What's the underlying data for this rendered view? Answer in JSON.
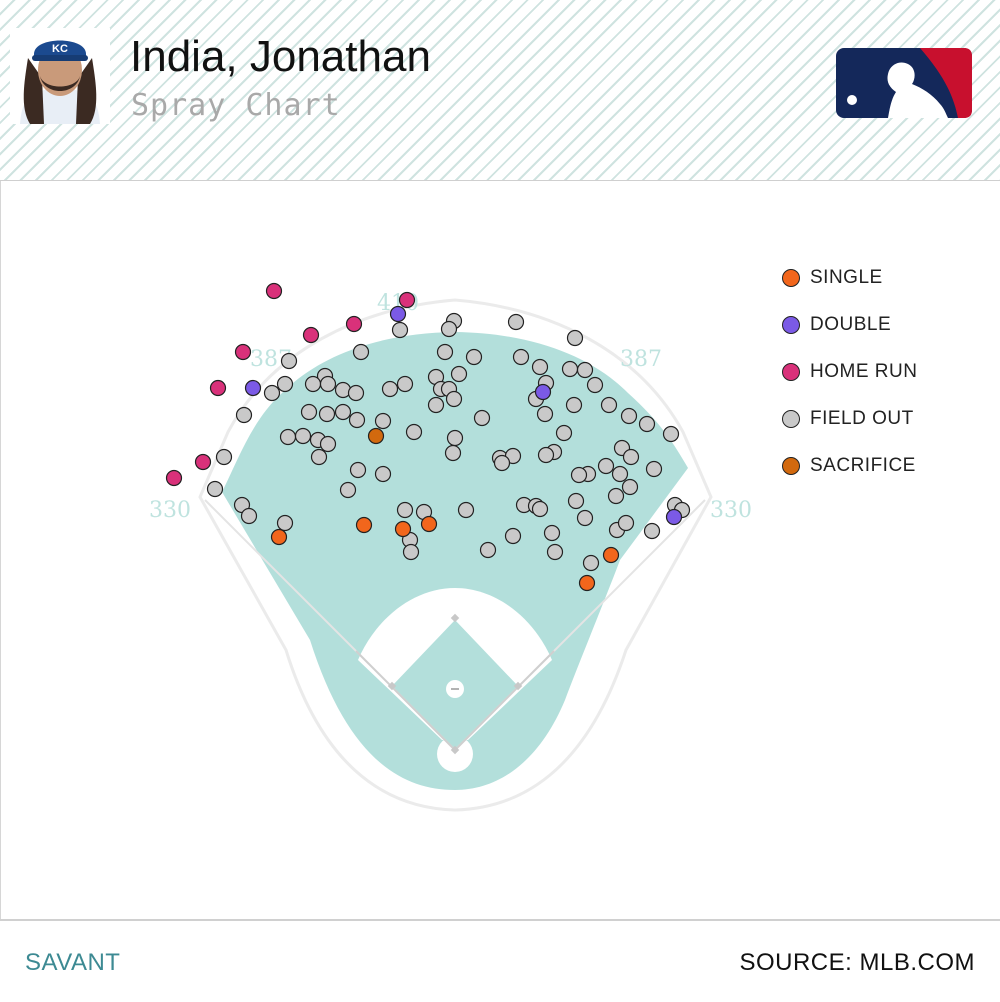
{
  "header": {
    "player_name": "India, Jonathan",
    "subtitle": "Spray Chart",
    "team_cap_letters": "KC",
    "league_logo": "mlb-logo"
  },
  "colors": {
    "field_fill": "#b3dfdb",
    "single": "#f2661c",
    "double": "#7b5ae6",
    "home_run": "#d9317a",
    "field_out": "#c9c9c9",
    "sacrifice": "#d2690e",
    "logo_navy": "#14285a",
    "logo_red": "#c8102e"
  },
  "chart_data": {
    "type": "scatter",
    "title": "Spray Chart",
    "fence_distances": {
      "left_field": "330",
      "left_center": "387",
      "center": "410",
      "right_center": "387",
      "right_field": "330"
    },
    "legend_placement": "top-right",
    "legend": [
      {
        "key": "single",
        "label": "SINGLE"
      },
      {
        "key": "double",
        "label": "DOUBLE"
      },
      {
        "key": "home_run",
        "label": "HOME RUN"
      },
      {
        "key": "field_out",
        "label": "FIELD OUT"
      },
      {
        "key": "sacrifice",
        "label": "SACRIFICE"
      }
    ],
    "series": [
      {
        "name": "SINGLE",
        "key": "single",
        "x": [
          279,
          364,
          403,
          429,
          611,
          587
        ],
        "y": [
          537,
          525,
          529,
          524,
          555,
          583
        ]
      },
      {
        "name": "DOUBLE",
        "key": "double",
        "x": [
          253,
          398,
          543,
          674
        ],
        "y": [
          388,
          314,
          392,
          517
        ]
      },
      {
        "name": "HOME RUN",
        "key": "home_run",
        "x": [
          274,
          407,
          311,
          354,
          243,
          218,
          203,
          174
        ],
        "y": [
          291,
          300,
          335,
          324,
          352,
          388,
          462,
          478
        ]
      },
      {
        "name": "FIELD OUT",
        "key": "field_out",
        "x": [
          454,
          516,
          449,
          400,
          575,
          361,
          445,
          474,
          289,
          521,
          540,
          570,
          585,
          436,
          459,
          325,
          313,
          285,
          272,
          328,
          343,
          356,
          390,
          405,
          441,
          449,
          546,
          536,
          595,
          244,
          309,
          327,
          343,
          357,
          383,
          436,
          454,
          482,
          545,
          574,
          609,
          629,
          647,
          671,
          564,
          414,
          455,
          453,
          500,
          513,
          502,
          554,
          546,
          622,
          631,
          606,
          588,
          579,
          620,
          654,
          224,
          288,
          303,
          318,
          328,
          319,
          358,
          383,
          348,
          215,
          242,
          249,
          285,
          405,
          424,
          466,
          524,
          536,
          540,
          576,
          616,
          630,
          585,
          552,
          513,
          488,
          555,
          410,
          411,
          617,
          626,
          652,
          591,
          675,
          682
        ],
        "y": [
          321,
          322,
          329,
          330,
          338,
          352,
          352,
          357,
          361,
          357,
          367,
          369,
          370,
          377,
          374,
          376,
          384,
          384,
          393,
          384,
          390,
          393,
          389,
          384,
          389,
          389,
          383,
          399,
          385,
          415,
          412,
          414,
          412,
          420,
          421,
          405,
          399,
          418,
          414,
          405,
          405,
          416,
          424,
          434,
          433,
          432,
          438,
          453,
          458,
          456,
          463,
          452,
          455,
          448,
          457,
          466,
          474,
          475,
          474,
          469,
          457,
          437,
          436,
          440,
          444,
          457,
          470,
          474,
          490,
          489,
          505,
          516,
          523,
          510,
          512,
          510,
          505,
          506,
          509,
          501,
          496,
          487,
          518,
          533,
          536,
          550,
          552,
          540,
          552,
          530,
          523,
          531,
          563,
          505,
          510
        ]
      },
      {
        "name": "SACRIFICE",
        "key": "sacrifice",
        "x": [
          376
        ],
        "y": [
          436
        ]
      }
    ]
  },
  "footer": {
    "left": "SAVANT",
    "right": "SOURCE: MLB.COM"
  }
}
